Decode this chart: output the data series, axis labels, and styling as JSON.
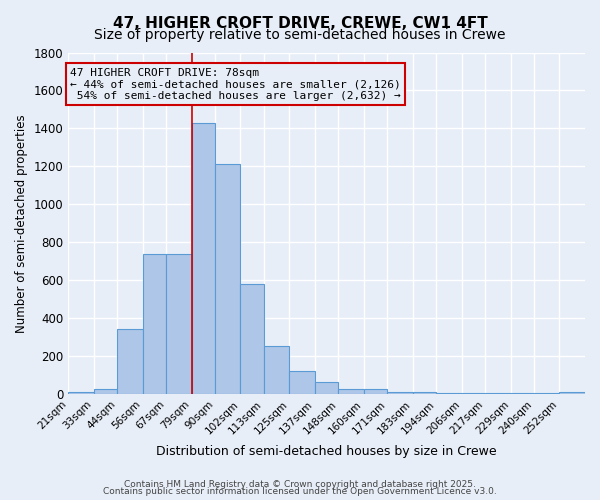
{
  "title": "47, HIGHER CROFT DRIVE, CREWE, CW1 4FT",
  "subtitle": "Size of property relative to semi-detached houses in Crewe",
  "xlabel": "Distribution of semi-detached houses by size in Crewe",
  "ylabel": "Number of semi-detached properties",
  "bin_labels": [
    "21sqm",
    "33sqm",
    "44sqm",
    "56sqm",
    "67sqm",
    "79sqm",
    "90sqm",
    "102sqm",
    "113sqm",
    "125sqm",
    "137sqm",
    "148sqm",
    "160sqm",
    "171sqm",
    "183sqm",
    "194sqm",
    "206sqm",
    "217sqm",
    "229sqm",
    "240sqm",
    "252sqm"
  ],
  "bin_starts": [
    21,
    33,
    44,
    56,
    67,
    79,
    90,
    102,
    113,
    125,
    137,
    148,
    160,
    171,
    183,
    194,
    206,
    217,
    229,
    240,
    252
  ],
  "bar_heights": [
    15,
    30,
    345,
    740,
    740,
    1430,
    1215,
    580,
    255,
    125,
    65,
    30,
    30,
    15,
    15,
    5,
    5,
    5,
    5,
    5,
    15
  ],
  "bar_color": "#aec6e8",
  "bar_edge_color": "#5b9bd5",
  "vline_x": 79,
  "vline_color": "#cc0000",
  "annotation_line1": "47 HIGHER CROFT DRIVE: 78sqm",
  "annotation_line2": "← 44% of semi-detached houses are smaller (2,126)",
  "annotation_line3": " 54% of semi-detached houses are larger (2,632) →",
  "annotation_box_color": "#cc0000",
  "ylim": [
    0,
    1800
  ],
  "yticks": [
    0,
    200,
    400,
    600,
    800,
    1000,
    1200,
    1400,
    1600,
    1800
  ],
  "background_color": "#e8eef8",
  "grid_color": "#ffffff",
  "footer_line1": "Contains HM Land Registry data © Crown copyright and database right 2025.",
  "footer_line2": "Contains public sector information licensed under the Open Government Licence v3.0.",
  "title_fontsize": 11,
  "subtitle_fontsize": 10,
  "annotation_fontsize": 8.0
}
